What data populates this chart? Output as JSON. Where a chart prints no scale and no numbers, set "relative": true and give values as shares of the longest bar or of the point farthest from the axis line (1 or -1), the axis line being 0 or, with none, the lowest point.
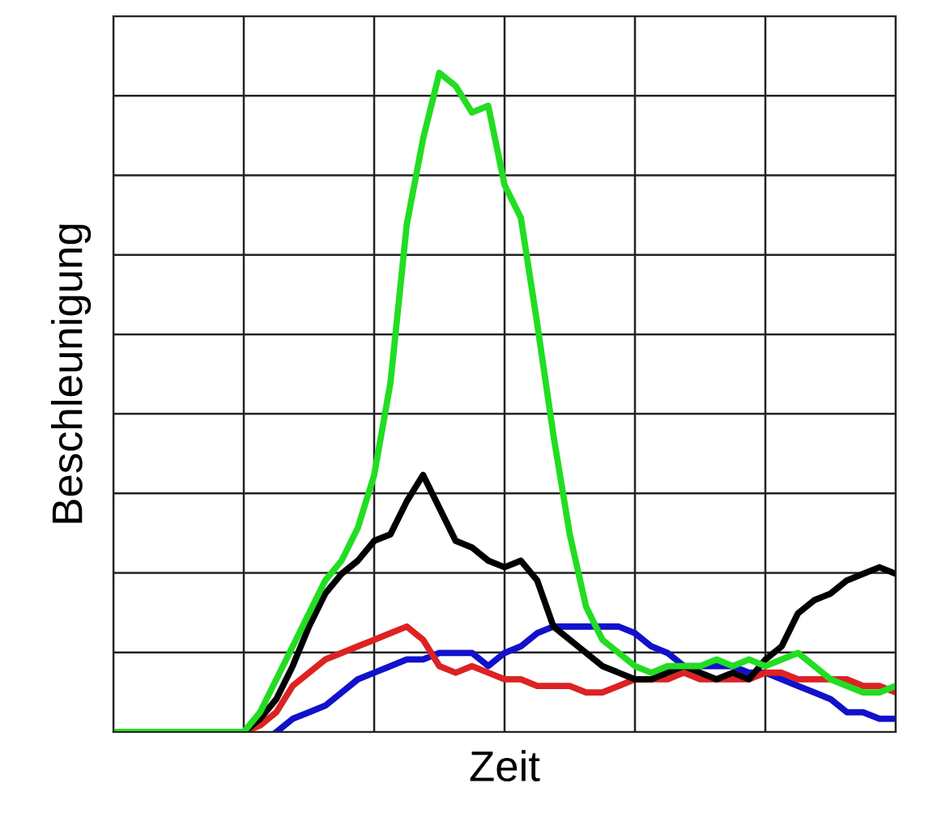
{
  "chart_data": {
    "type": "line",
    "relative": true,
    "xlabel": "Zeit",
    "ylabel": "Beschleunigung",
    "grid": true,
    "tick_labels": false,
    "legend": false,
    "marker": "none",
    "line_style": "solid",
    "categories": [
      null,
      null,
      null,
      null,
      null,
      null,
      null,
      null,
      null,
      null,
      null,
      null,
      null,
      null,
      null,
      null,
      null,
      null,
      null,
      null,
      null,
      null,
      null,
      null,
      null,
      null,
      null,
      null,
      null,
      null,
      null,
      null,
      null,
      null,
      null,
      null,
      null,
      null,
      null,
      null,
      null,
      null,
      null,
      null,
      null,
      null,
      null,
      null,
      null
    ],
    "series": [
      {
        "color": "#1111cc",
        "values": [
          null,
          null,
          null,
          null,
          null,
          null,
          null,
          null,
          null,
          null,
          0,
          0.02,
          0.03,
          0.04,
          0.06,
          0.08,
          0.09,
          0.1,
          0.11,
          0.11,
          0.12,
          0.12,
          0.12,
          0.1,
          0.12,
          0.13,
          0.15,
          0.16,
          0.16,
          0.16,
          0.16,
          0.16,
          0.15,
          0.13,
          0.12,
          0.1,
          0.1,
          0.1,
          0.1,
          0.09,
          0.09,
          0.08,
          0.07,
          0.06,
          0.05,
          0.03,
          0.03,
          0.02,
          0.02
        ]
      },
      {
        "color": "#dd2222",
        "values": [
          null,
          null,
          null,
          null,
          null,
          null,
          null,
          null,
          0,
          0.01,
          0.03,
          0.07,
          0.09,
          0.11,
          0.12,
          0.13,
          0.14,
          0.15,
          0.16,
          0.14,
          0.1,
          0.09,
          0.1,
          0.09,
          0.08,
          0.08,
          0.07,
          0.07,
          0.07,
          0.06,
          0.06,
          0.07,
          0.08,
          0.08,
          0.08,
          0.09,
          0.08,
          0.08,
          0.08,
          0.08,
          0.09,
          0.09,
          0.08,
          0.08,
          0.08,
          0.08,
          0.07,
          0.07,
          0.06
        ]
      },
      {
        "color": "#000000",
        "values": [
          null,
          null,
          null,
          null,
          null,
          null,
          null,
          null,
          0,
          0.02,
          0.05,
          0.1,
          0.16,
          0.21,
          0.24,
          0.26,
          0.29,
          0.3,
          0.35,
          0.39,
          0.34,
          0.29,
          0.28,
          0.26,
          0.25,
          0.26,
          0.23,
          0.16,
          0.14,
          0.12,
          0.1,
          0.09,
          0.08,
          0.08,
          0.09,
          0.1,
          0.09,
          0.08,
          0.09,
          0.08,
          0.11,
          0.13,
          0.18,
          0.2,
          0.21,
          0.23,
          0.24,
          0.25,
          0.24
        ]
      },
      {
        "color": "#22dd22",
        "values": [
          0,
          0,
          0,
          0,
          0,
          0,
          0,
          0,
          0,
          0.03,
          0.08,
          0.13,
          0.18,
          0.23,
          0.26,
          0.31,
          0.39,
          0.53,
          0.77,
          0.9,
          1,
          0.98,
          0.94,
          0.95,
          0.83,
          0.78,
          0.62,
          0.45,
          0.3,
          0.19,
          0.14,
          0.12,
          0.1,
          0.09,
          0.1,
          0.1,
          0.1,
          0.11,
          0.1,
          0.11,
          0.1,
          0.11,
          0.12,
          0.1,
          0.08,
          0.07,
          0.06,
          0.06,
          0.07
        ]
      }
    ]
  }
}
